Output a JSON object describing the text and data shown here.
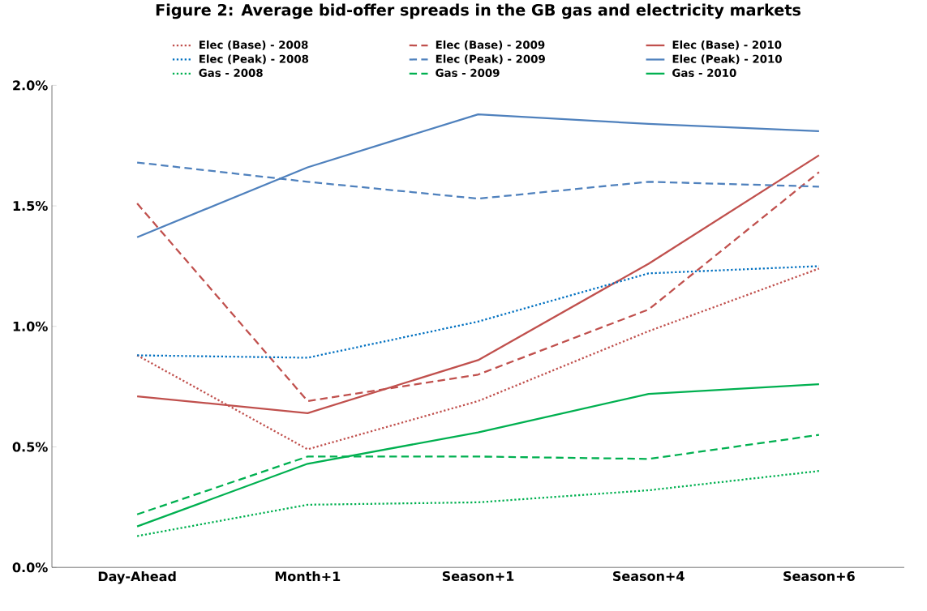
{
  "chart_data": {
    "type": "line",
    "title": "Figure 2: Average bid-offer spreads in the GB gas and electricity markets",
    "categories": [
      "Day-Ahead",
      "Month+1",
      "Season+1",
      "Season+4",
      "Season+6"
    ],
    "series": [
      {
        "name": "Elec (Base) - 2008",
        "color": "#c0504d",
        "line_style": "dotted",
        "values": [
          0.88,
          0.49,
          0.69,
          0.98,
          1.24
        ]
      },
      {
        "name": "Elec (Base) - 2009",
        "color": "#c0504d",
        "line_style": "dashed",
        "values": [
          1.51,
          0.69,
          0.8,
          1.07,
          1.64
        ]
      },
      {
        "name": "Elec (Base) - 2010",
        "color": "#c0504d",
        "line_style": "solid",
        "values": [
          0.71,
          0.64,
          0.86,
          1.26,
          1.71
        ]
      },
      {
        "name": "Elec (Peak) - 2008",
        "color": "#0070c0",
        "line_style": "dotted",
        "values": [
          0.88,
          0.87,
          1.02,
          1.22,
          1.25
        ]
      },
      {
        "name": "Elec (Peak) - 2009",
        "color": "#4f81bd",
        "line_style": "dashed",
        "values": [
          1.68,
          1.6,
          1.53,
          1.6,
          1.58
        ]
      },
      {
        "name": "Elec (Peak) - 2010",
        "color": "#4f81bd",
        "line_style": "solid",
        "values": [
          1.37,
          1.66,
          1.88,
          1.84,
          1.81
        ]
      },
      {
        "name": "Gas - 2008",
        "color": "#00b050",
        "line_style": "dotted",
        "values": [
          0.13,
          0.26,
          0.27,
          0.32,
          0.4
        ]
      },
      {
        "name": "Gas - 2009",
        "color": "#00b050",
        "line_style": "dashed",
        "values": [
          0.22,
          0.46,
          0.46,
          0.45,
          0.55
        ]
      },
      {
        "name": "Gas - 2010",
        "color": "#00b050",
        "line_style": "solid",
        "values": [
          0.17,
          0.43,
          0.56,
          0.72,
          0.76
        ]
      }
    ],
    "ylim": [
      0,
      2.0
    ],
    "yticks": [
      {
        "value": 0,
        "label": "0.0%"
      },
      {
        "value": 0.5,
        "label": "0.5%"
      },
      {
        "value": 1.0,
        "label": "1.0%"
      },
      {
        "value": 1.5,
        "label": "1.5%"
      },
      {
        "value": 2.0,
        "label": "2.0%"
      }
    ],
    "grid": false,
    "legend": "top",
    "marker": "none"
  }
}
